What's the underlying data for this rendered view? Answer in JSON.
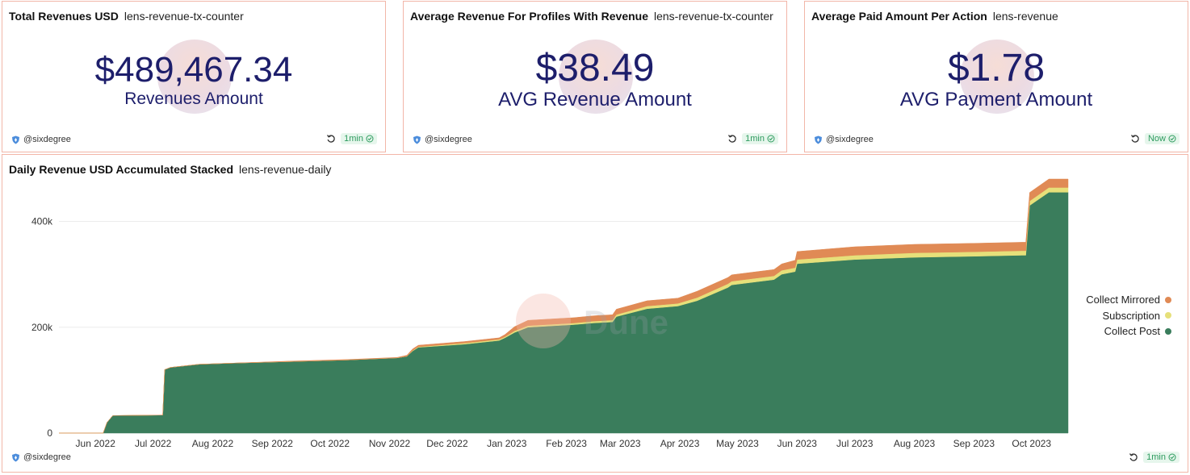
{
  "cards": [
    {
      "title": "Total Revenues USD",
      "query": "lens-revenue-tx-counter",
      "value": "$489,467.34",
      "label": "Revenues Amount",
      "user": "@sixdegree",
      "refresh": "1min"
    },
    {
      "title": "Average Revenue For Profiles With Revenue",
      "query": "lens-revenue-tx-counter",
      "value": "$38.49",
      "label": "AVG Revenue Amount",
      "user": "@sixdegree",
      "refresh": "1min"
    },
    {
      "title": "Average Paid Amount Per Action",
      "query": "lens-revenue",
      "value": "$1.78",
      "label": "AVG Payment Amount",
      "user": "@sixdegree",
      "refresh": "Now"
    }
  ],
  "chart_card": {
    "title": "Daily Revenue USD Accumulated Stacked",
    "query": "lens-revenue-daily",
    "user": "@sixdegree",
    "refresh": "1min",
    "watermark": "Dune"
  },
  "colors": {
    "collect_post": "#3a7d5c",
    "subscription": "#e6e07a",
    "collect_mirrored": "#e08a55",
    "accent_text": "#1d1e6b",
    "border": "#f2b6a8"
  },
  "chart_data": {
    "type": "area",
    "stacked": true,
    "title": "Daily Revenue USD Accumulated Stacked",
    "xlabel": "",
    "ylabel": "",
    "ylim": [
      0,
      480000
    ],
    "yticks": [
      0,
      200000,
      400000
    ],
    "ytick_labels": [
      "0",
      "200k",
      "400k"
    ],
    "xtick_dates": [
      "2022-06-01",
      "2022-07-01",
      "2022-08-01",
      "2022-09-01",
      "2022-10-01",
      "2022-11-01",
      "2022-12-01",
      "2023-01-01",
      "2023-02-01",
      "2023-03-01",
      "2023-04-01",
      "2023-05-01",
      "2023-06-01",
      "2023-07-01",
      "2023-08-01",
      "2023-09-01",
      "2023-10-01"
    ],
    "xtick_labels": [
      "Jun 2022",
      "Jul 2022",
      "Aug 2022",
      "Sep 2022",
      "Oct 2022",
      "Nov 2022",
      "Dec 2022",
      "Jan 2023",
      "Feb 2023",
      "Mar 2023",
      "Apr 2023",
      "May 2023",
      "Jun 2023",
      "Jul 2023",
      "Aug 2023",
      "Sep 2023",
      "Oct 2023"
    ],
    "x": [
      "2022-05-13",
      "2022-06-05",
      "2022-06-07",
      "2022-06-10",
      "2022-07-06",
      "2022-07-07",
      "2022-07-10",
      "2022-07-25",
      "2022-08-10",
      "2022-09-10",
      "2022-10-10",
      "2022-11-05",
      "2022-11-10",
      "2022-11-13",
      "2022-11-16",
      "2022-12-10",
      "2022-12-28",
      "2022-12-31",
      "2023-01-05",
      "2023-01-12",
      "2023-02-05",
      "2023-02-15",
      "2023-02-25",
      "2023-02-27",
      "2023-03-15",
      "2023-03-31",
      "2023-04-10",
      "2023-04-26",
      "2023-04-28",
      "2023-05-20",
      "2023-05-24",
      "2023-05-31",
      "2023-06-01",
      "2023-07-01",
      "2023-08-01",
      "2023-09-01",
      "2023-09-26",
      "2023-09-28",
      "2023-09-30",
      "2023-10-10",
      "2023-10-20"
    ],
    "series": [
      {
        "name": "Collect Post",
        "color": "#3a7d5c",
        "values": [
          0,
          0,
          20000,
          33000,
          34000,
          120000,
          124000,
          130000,
          132000,
          135000,
          138000,
          142000,
          145000,
          155000,
          162000,
          168000,
          175000,
          180000,
          190000,
          200000,
          205000,
          208000,
          210000,
          220000,
          235000,
          240000,
          250000,
          275000,
          280000,
          290000,
          300000,
          305000,
          320000,
          328000,
          332000,
          334000,
          336000,
          336000,
          430000,
          455000,
          455000
        ]
      },
      {
        "name": "Subscription",
        "color": "#e6e07a",
        "values": [
          0,
          0,
          0,
          0,
          0,
          0,
          0,
          0,
          0,
          0,
          0,
          0,
          0,
          1000,
          1000,
          2000,
          2000,
          2000,
          3000,
          3000,
          3000,
          3500,
          3500,
          4000,
          5000,
          5000,
          6000,
          7000,
          7000,
          7000,
          7500,
          7500,
          8000,
          8000,
          8500,
          8500,
          8500,
          8500,
          8500,
          9000,
          9000
        ]
      },
      {
        "name": "Collect Mirrored",
        "color": "#e08a55",
        "values": [
          0,
          0,
          0,
          0,
          0,
          0,
          0,
          0,
          0,
          1000,
          1000,
          1000,
          2000,
          3000,
          3000,
          3000,
          3000,
          4000,
          8000,
          10000,
          10000,
          10000,
          10000,
          10000,
          10000,
          10000,
          12000,
          12000,
          12000,
          12000,
          12000,
          14000,
          15000,
          16000,
          16000,
          16000,
          16000,
          16000,
          16000,
          16000,
          16000
        ]
      }
    ],
    "grid": true,
    "legend_position": "right"
  }
}
